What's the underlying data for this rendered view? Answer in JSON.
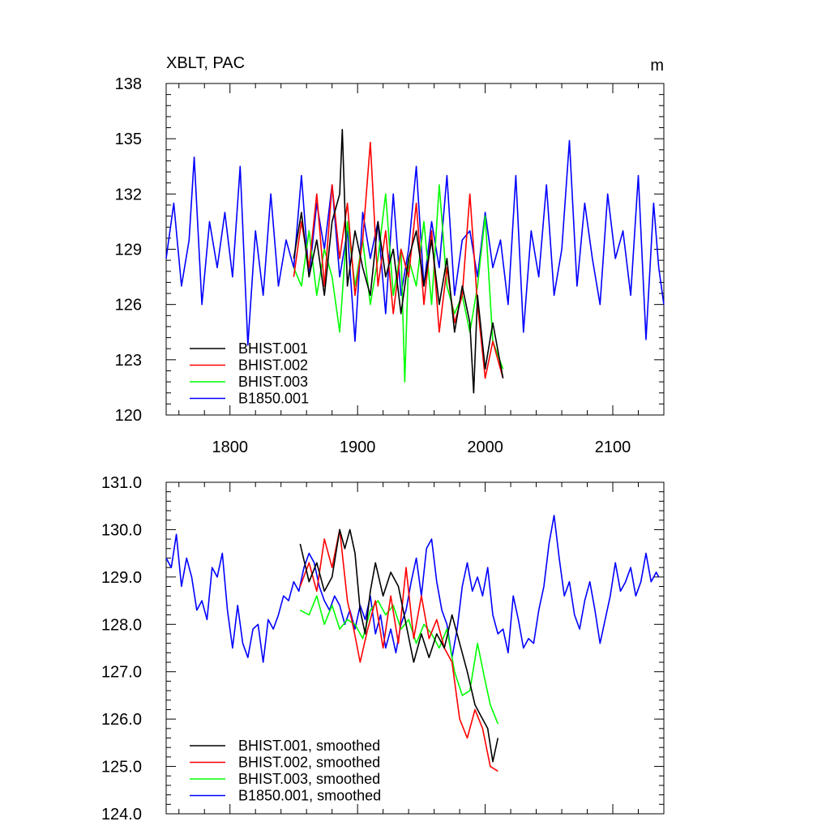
{
  "chart_data": [
    {
      "type": "line",
      "title": "XBLT, PAC",
      "units": "m",
      "xlim": [
        1750,
        2140
      ],
      "ylim": [
        120,
        138
      ],
      "xticks": [
        1800,
        1900,
        2000,
        2100
      ],
      "xtick_labels": [
        "1800",
        "1900",
        "2000",
        "2100"
      ],
      "yticks": [
        120,
        123,
        126,
        129,
        132,
        135,
        138
      ],
      "ytick_labels": [
        "120",
        "123",
        "126",
        "129",
        "132",
        "135",
        "138"
      ],
      "legend": "lower-left",
      "series": [
        {
          "name": "BHIST.001",
          "color": "#000000",
          "x": [
            1850,
            1856,
            1862,
            1868,
            1874,
            1880,
            1886,
            1888,
            1892,
            1898,
            1904,
            1910,
            1916,
            1922,
            1928,
            1934,
            1940,
            1946,
            1952,
            1958,
            1964,
            1970,
            1976,
            1982,
            1988,
            1991,
            1994,
            2000,
            2006,
            2014
          ],
          "y": [
            128.5,
            131.0,
            127.5,
            129.5,
            126.5,
            130.5,
            132.0,
            135.5,
            127.0,
            130.0,
            128.0,
            126.5,
            130.5,
            127.5,
            129.0,
            125.5,
            128.5,
            130.0,
            127.0,
            129.5,
            126.0,
            128.5,
            124.5,
            127.0,
            125.0,
            121.2,
            126.5,
            122.5,
            125.0,
            122.0
          ]
        },
        {
          "name": "BHIST.002",
          "color": "#ff0000",
          "x": [
            1850,
            1856,
            1862,
            1868,
            1874,
            1880,
            1886,
            1892,
            1898,
            1904,
            1910,
            1916,
            1922,
            1928,
            1934,
            1940,
            1946,
            1952,
            1958,
            1964,
            1970,
            1976,
            1982,
            1988,
            1994,
            2000,
            2006,
            2014
          ],
          "y": [
            127.5,
            130.5,
            128.0,
            132.0,
            127.0,
            132.5,
            128.5,
            131.5,
            126.5,
            129.5,
            134.8,
            127.0,
            130.0,
            125.5,
            129.0,
            127.5,
            131.5,
            126.0,
            130.0,
            124.5,
            128.0,
            125.0,
            126.5,
            132.0,
            126.0,
            122.0,
            124.0,
            122.0
          ]
        },
        {
          "name": "BHIST.003",
          "color": "#00ff00",
          "x": [
            1850,
            1856,
            1862,
            1868,
            1874,
            1880,
            1886,
            1892,
            1898,
            1904,
            1910,
            1916,
            1922,
            1928,
            1934,
            1937,
            1940,
            1946,
            1952,
            1958,
            1964,
            1970,
            1976,
            1982,
            1988,
            1994,
            2000,
            2006,
            2014
          ],
          "y": [
            128.0,
            127.0,
            130.0,
            126.5,
            129.0,
            127.5,
            124.5,
            130.5,
            127.0,
            129.5,
            126.0,
            128.5,
            132.0,
            126.5,
            129.0,
            121.8,
            128.5,
            127.0,
            130.5,
            126.0,
            132.5,
            127.0,
            125.5,
            126.5,
            124.5,
            127.0,
            130.8,
            124.0,
            122.5
          ]
        },
        {
          "name": "B1850.001",
          "color": "#0000ff",
          "x": [
            1750,
            1756,
            1762,
            1768,
            1772,
            1778,
            1784,
            1790,
            1796,
            1802,
            1808,
            1814,
            1820,
            1826,
            1832,
            1838,
            1844,
            1850,
            1856,
            1862,
            1868,
            1874,
            1880,
            1886,
            1892,
            1898,
            1904,
            1910,
            1916,
            1922,
            1928,
            1934,
            1940,
            1946,
            1952,
            1958,
            1964,
            1970,
            1976,
            1982,
            1988,
            1994,
            2000,
            2006,
            2012,
            2018,
            2024,
            2030,
            2036,
            2042,
            2048,
            2054,
            2060,
            2066,
            2072,
            2078,
            2084,
            2090,
            2096,
            2102,
            2108,
            2114,
            2120,
            2126,
            2132,
            2136,
            2140
          ],
          "y": [
            128.5,
            131.5,
            127.0,
            129.5,
            134.0,
            126.0,
            130.5,
            128.0,
            131.0,
            127.5,
            133.5,
            123.8,
            130.0,
            126.5,
            132.0,
            127.0,
            129.5,
            128.0,
            133.0,
            127.5,
            131.5,
            129.0,
            132.5,
            127.5,
            130.0,
            124.0,
            131.0,
            128.5,
            130.5,
            125.5,
            132.0,
            126.5,
            129.0,
            133.5,
            127.0,
            130.5,
            128.0,
            133.0,
            126.5,
            129.5,
            130.0,
            127.5,
            131.0,
            128.0,
            129.5,
            126.0,
            133.0,
            124.5,
            130.0,
            127.5,
            132.5,
            126.5,
            129.0,
            134.9,
            127.0,
            131.5,
            128.5,
            126.0,
            132.0,
            128.5,
            130.0,
            126.5,
            133.0,
            124.1,
            131.5,
            128.0,
            126.0
          ]
        }
      ]
    },
    {
      "type": "line",
      "xlim": [
        1750,
        2140
      ],
      "ylim": [
        124.0,
        131.0
      ],
      "xticks": [
        1800,
        1900,
        2000,
        2100
      ],
      "yticks": [
        124,
        125,
        126,
        127,
        128,
        129,
        130,
        131
      ],
      "ytick_labels": [
        "124.0",
        "125.0",
        "126.0",
        "127.0",
        "128.0",
        "129.0",
        "130.0",
        "131.0"
      ],
      "legend": "lower-left",
      "series": [
        {
          "name": "BHIST.001, smoothed",
          "color": "#000000",
          "x": [
            1855,
            1862,
            1868,
            1874,
            1880,
            1886,
            1890,
            1894,
            1898,
            1902,
            1906,
            1910,
            1914,
            1920,
            1926,
            1932,
            1938,
            1944,
            1950,
            1956,
            1962,
            1968,
            1974,
            1980,
            1986,
            1992,
            1998,
            2002,
            2006,
            2010
          ],
          "y": [
            129.7,
            128.9,
            129.3,
            128.7,
            129.0,
            130.0,
            129.6,
            130.0,
            129.5,
            128.3,
            127.8,
            128.7,
            129.3,
            128.6,
            129.1,
            128.8,
            128.0,
            127.2,
            127.8,
            127.3,
            127.8,
            127.5,
            128.2,
            127.6,
            127.0,
            126.3,
            126.0,
            125.8,
            125.1,
            125.6
          ]
        },
        {
          "name": "BHIST.002, smoothed",
          "color": "#ff0000",
          "x": [
            1855,
            1862,
            1868,
            1874,
            1880,
            1886,
            1892,
            1897,
            1902,
            1908,
            1914,
            1920,
            1926,
            1932,
            1938,
            1944,
            1950,
            1956,
            1962,
            1968,
            1974,
            1980,
            1986,
            1992,
            1998,
            2004,
            2010
          ],
          "y": [
            128.8,
            129.3,
            128.7,
            129.8,
            129.2,
            130.0,
            128.5,
            127.9,
            127.2,
            127.9,
            128.5,
            127.5,
            128.6,
            127.6,
            129.2,
            127.7,
            128.6,
            127.7,
            128.1,
            127.5,
            127.2,
            126.0,
            125.6,
            126.2,
            125.8,
            125.0,
            124.9
          ]
        },
        {
          "name": "BHIST.003, smoothed",
          "color": "#00ff00",
          "x": [
            1855,
            1862,
            1868,
            1874,
            1880,
            1886,
            1892,
            1898,
            1904,
            1910,
            1916,
            1922,
            1928,
            1934,
            1940,
            1946,
            1952,
            1958,
            1964,
            1970,
            1976,
            1982,
            1988,
            1994,
            2000,
            2004,
            2010
          ],
          "y": [
            128.3,
            128.2,
            128.6,
            128.0,
            128.4,
            127.9,
            128.1,
            128.0,
            127.7,
            128.3,
            128.5,
            128.2,
            128.4,
            127.9,
            128.1,
            127.6,
            128.0,
            127.8,
            127.5,
            127.9,
            127.0,
            126.5,
            126.6,
            127.6,
            126.8,
            126.3,
            125.9
          ]
        },
        {
          "name": "B1850.001, smoothed",
          "color": "#0000ff",
          "x": [
            1750,
            1754,
            1758,
            1762,
            1766,
            1770,
            1774,
            1778,
            1782,
            1786,
            1790,
            1794,
            1798,
            1802,
            1806,
            1810,
            1814,
            1818,
            1822,
            1826,
            1830,
            1834,
            1838,
            1842,
            1846,
            1850,
            1854,
            1858,
            1862,
            1866,
            1870,
            1874,
            1878,
            1882,
            1886,
            1890,
            1894,
            1898,
            1902,
            1906,
            1910,
            1914,
            1918,
            1922,
            1926,
            1930,
            1934,
            1938,
            1942,
            1946,
            1950,
            1954,
            1958,
            1962,
            1966,
            1970,
            1974,
            1978,
            1982,
            1986,
            1990,
            1994,
            1998,
            2002,
            2006,
            2010,
            2014,
            2018,
            2022,
            2026,
            2030,
            2034,
            2038,
            2042,
            2046,
            2050,
            2054,
            2058,
            2062,
            2066,
            2070,
            2074,
            2078,
            2082,
            2086,
            2090,
            2094,
            2098,
            2102,
            2106,
            2110,
            2114,
            2118,
            2122,
            2126,
            2130,
            2134,
            2136
          ],
          "y": [
            129.4,
            129.2,
            129.9,
            128.8,
            129.4,
            129.0,
            128.3,
            128.5,
            128.1,
            129.2,
            129.0,
            129.5,
            128.3,
            127.5,
            128.4,
            127.6,
            127.3,
            127.9,
            128.0,
            127.2,
            128.1,
            127.9,
            128.2,
            128.6,
            128.5,
            128.9,
            128.7,
            129.2,
            129.5,
            129.3,
            128.8,
            128.5,
            128.3,
            128.6,
            128.4,
            128.0,
            128.3,
            127.9,
            128.4,
            128.1,
            128.6,
            127.8,
            128.2,
            127.5,
            127.9,
            127.4,
            128.0,
            128.3,
            128.9,
            129.4,
            128.6,
            129.6,
            129.8,
            128.9,
            128.3,
            128.0,
            127.3,
            127.9,
            128.8,
            129.3,
            128.7,
            129.0,
            128.6,
            129.2,
            128.2,
            127.8,
            127.9,
            127.4,
            128.6,
            128.1,
            127.5,
            127.7,
            127.6,
            128.3,
            128.8,
            129.7,
            130.3,
            129.4,
            128.6,
            128.9,
            128.2,
            127.9,
            128.5,
            128.9,
            128.3,
            127.6,
            128.1,
            128.6,
            129.3,
            128.7,
            128.9,
            129.2,
            128.6,
            128.9,
            129.5,
            128.9,
            129.1,
            129.0
          ]
        }
      ]
    }
  ]
}
